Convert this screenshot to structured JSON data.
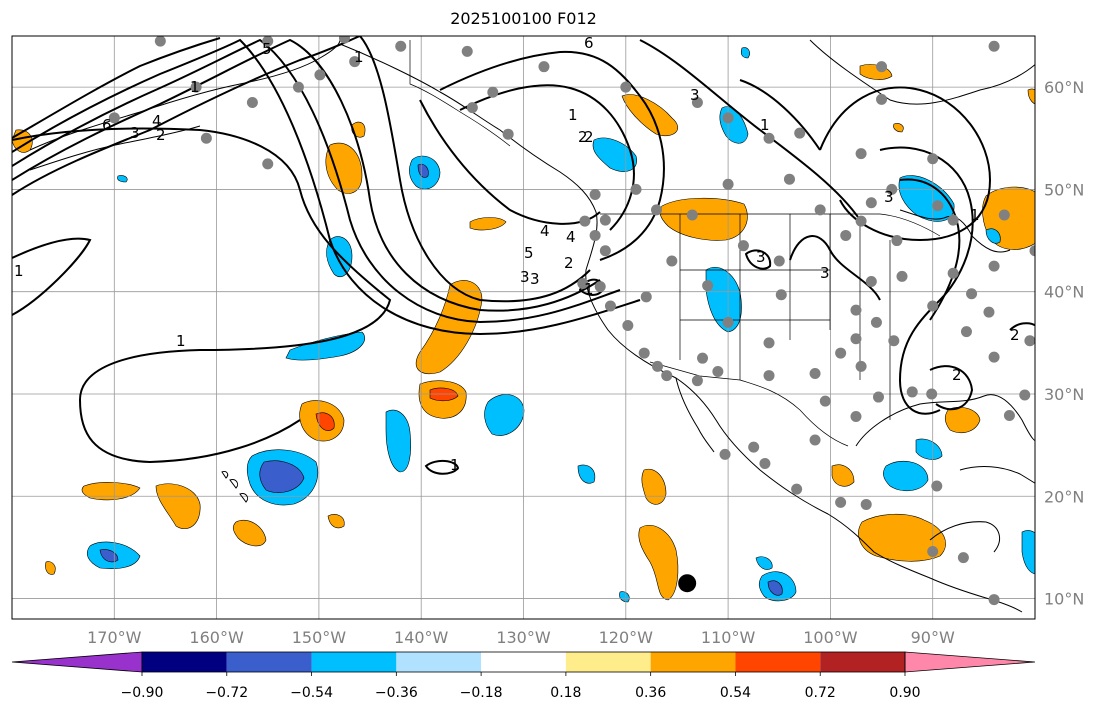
{
  "title": "2025100100 F012",
  "map": {
    "lon_range": [
      -180,
      -80
    ],
    "lat_range": [
      8,
      65
    ],
    "lon_ticks": [
      {
        "value": -170,
        "label": "170°W"
      },
      {
        "value": -160,
        "label": "160°W"
      },
      {
        "value": -150,
        "label": "150°W"
      },
      {
        "value": -140,
        "label": "140°W"
      },
      {
        "value": -130,
        "label": "130°W"
      },
      {
        "value": -120,
        "label": "120°W"
      },
      {
        "value": -110,
        "label": "110°W"
      },
      {
        "value": -100,
        "label": "100°W"
      },
      {
        "value": -90,
        "label": "90°W"
      }
    ],
    "lat_ticks": [
      {
        "value": 60,
        "label": "60°N"
      },
      {
        "value": 50,
        "label": "50°N"
      },
      {
        "value": 40,
        "label": "40°N"
      },
      {
        "value": 30,
        "label": "30°N"
      },
      {
        "value": 20,
        "label": "20°N"
      },
      {
        "value": 10,
        "label": "10°N"
      }
    ],
    "gridlines": true,
    "colors": {
      "coast": "#000000",
      "grid": "#999999",
      "station": "#808080",
      "contour": "#000000"
    },
    "marker": {
      "lon": -114.0,
      "lat": 11.5,
      "color": "#000000"
    },
    "stations": [
      [
        -135.5,
        63.5
      ],
      [
        -133,
        59.5
      ],
      [
        -128,
        62
      ],
      [
        -120,
        60
      ],
      [
        -113,
        58.5
      ],
      [
        -110,
        57
      ],
      [
        -106,
        55
      ],
      [
        -103,
        55.5
      ],
      [
        -97,
        53.5
      ],
      [
        -94,
        50
      ],
      [
        -90,
        53
      ],
      [
        -96,
        48.7
      ],
      [
        -101,
        48
      ],
      [
        -104,
        51
      ],
      [
        -110,
        50.5
      ],
      [
        -117,
        48
      ],
      [
        -113.5,
        47.5
      ],
      [
        -119,
        50
      ],
      [
        -123,
        49.5
      ],
      [
        -122,
        47
      ],
      [
        -122,
        44
      ],
      [
        -122.5,
        40.5
      ],
      [
        -118,
        39.5
      ],
      [
        -115.5,
        43
      ],
      [
        -112,
        40.6
      ],
      [
        -108.5,
        44.5
      ],
      [
        -105,
        43
      ],
      [
        -104.8,
        39.7
      ],
      [
        -110,
        37
      ],
      [
        -112.5,
        33.5
      ],
      [
        -111,
        32.2
      ],
      [
        -106,
        35
      ],
      [
        -106,
        31.8
      ],
      [
        -101.5,
        32
      ],
      [
        -99,
        34
      ],
      [
        -97,
        32.7
      ],
      [
        -97.5,
        35.4
      ],
      [
        -95.5,
        37
      ],
      [
        -97.5,
        38.2
      ],
      [
        -96,
        41
      ],
      [
        -98.5,
        45.5
      ],
      [
        -97,
        46.9
      ],
      [
        -93.5,
        45
      ],
      [
        -93,
        41.5
      ],
      [
        -90,
        38.6
      ],
      [
        -93.8,
        35.2
      ],
      [
        -92,
        30.2
      ],
      [
        -95.3,
        29.7
      ],
      [
        -97.5,
        27.8
      ],
      [
        -100.5,
        29.3
      ],
      [
        -90.1,
        30
      ],
      [
        -88,
        41.8
      ],
      [
        -86.2,
        39.8
      ],
      [
        -84.5,
        38
      ],
      [
        -86.7,
        36.1
      ],
      [
        -84,
        33.6
      ],
      [
        -82.5,
        27.9
      ],
      [
        -81,
        29.9
      ],
      [
        -80.5,
        35.2
      ],
      [
        -84,
        42.5
      ],
      [
        -83,
        47.5
      ],
      [
        -80,
        44
      ],
      [
        -88,
        47
      ],
      [
        -89.5,
        48.4
      ],
      [
        -95,
        58.8
      ],
      [
        -95,
        62
      ],
      [
        -84,
        64
      ],
      [
        -155,
        64.5
      ],
      [
        -149.9,
        61.2
      ],
      [
        -146.5,
        62.5
      ],
      [
        -142,
        64
      ],
      [
        -131.5,
        55.4
      ],
      [
        -135,
        58
      ],
      [
        -152,
        60
      ],
      [
        -156.5,
        58.5
      ],
      [
        -162,
        60
      ],
      [
        -165.5,
        64.5
      ],
      [
        -170,
        57
      ],
      [
        -147.5,
        64.8
      ],
      [
        -155,
        52.5
      ],
      [
        -161,
        55
      ],
      [
        -101.5,
        25.5
      ],
      [
        -103.3,
        20.7
      ],
      [
        -99,
        19.4
      ],
      [
        -96.5,
        19.2
      ],
      [
        -89.6,
        21
      ],
      [
        -90,
        14.6
      ],
      [
        -87,
        14
      ],
      [
        -84,
        9.9
      ],
      [
        -116,
        31.8
      ],
      [
        -116.9,
        32.7
      ],
      [
        -118.2,
        34
      ],
      [
        -119.8,
        36.7
      ],
      [
        -121.5,
        38.6
      ],
      [
        -124.2,
        40.8
      ],
      [
        -124,
        46.9
      ],
      [
        -123,
        45.5
      ],
      [
        -107.5,
        24.8
      ],
      [
        -110.3,
        24.1
      ],
      [
        -113,
        31.3
      ],
      [
        -106.4,
        23.2
      ]
    ]
  },
  "colorbar": {
    "tick_labels": [
      "−0.90",
      "−0.72",
      "−0.54",
      "−0.36",
      "−0.18",
      "0.18",
      "0.36",
      "0.54",
      "0.72",
      "0.90"
    ],
    "colors": [
      "#9932cc",
      "#000080",
      "#3a5fcd",
      "#00bfff",
      "#b0e2ff",
      "#ffffff",
      "#ffec8b",
      "#ffa500",
      "#ff4500",
      "#b22222",
      "#ff88aa"
    ]
  },
  "contour_labels": [
    "5",
    "6",
    "1",
    "4",
    "3",
    "2",
    "6",
    "4",
    "3",
    "2",
    "1",
    "1",
    "2",
    "3",
    "4",
    "5",
    "1",
    "2",
    "3",
    "1",
    "3",
    "1",
    "2",
    "3",
    "2",
    "3",
    "1",
    "1",
    "1"
  ]
}
